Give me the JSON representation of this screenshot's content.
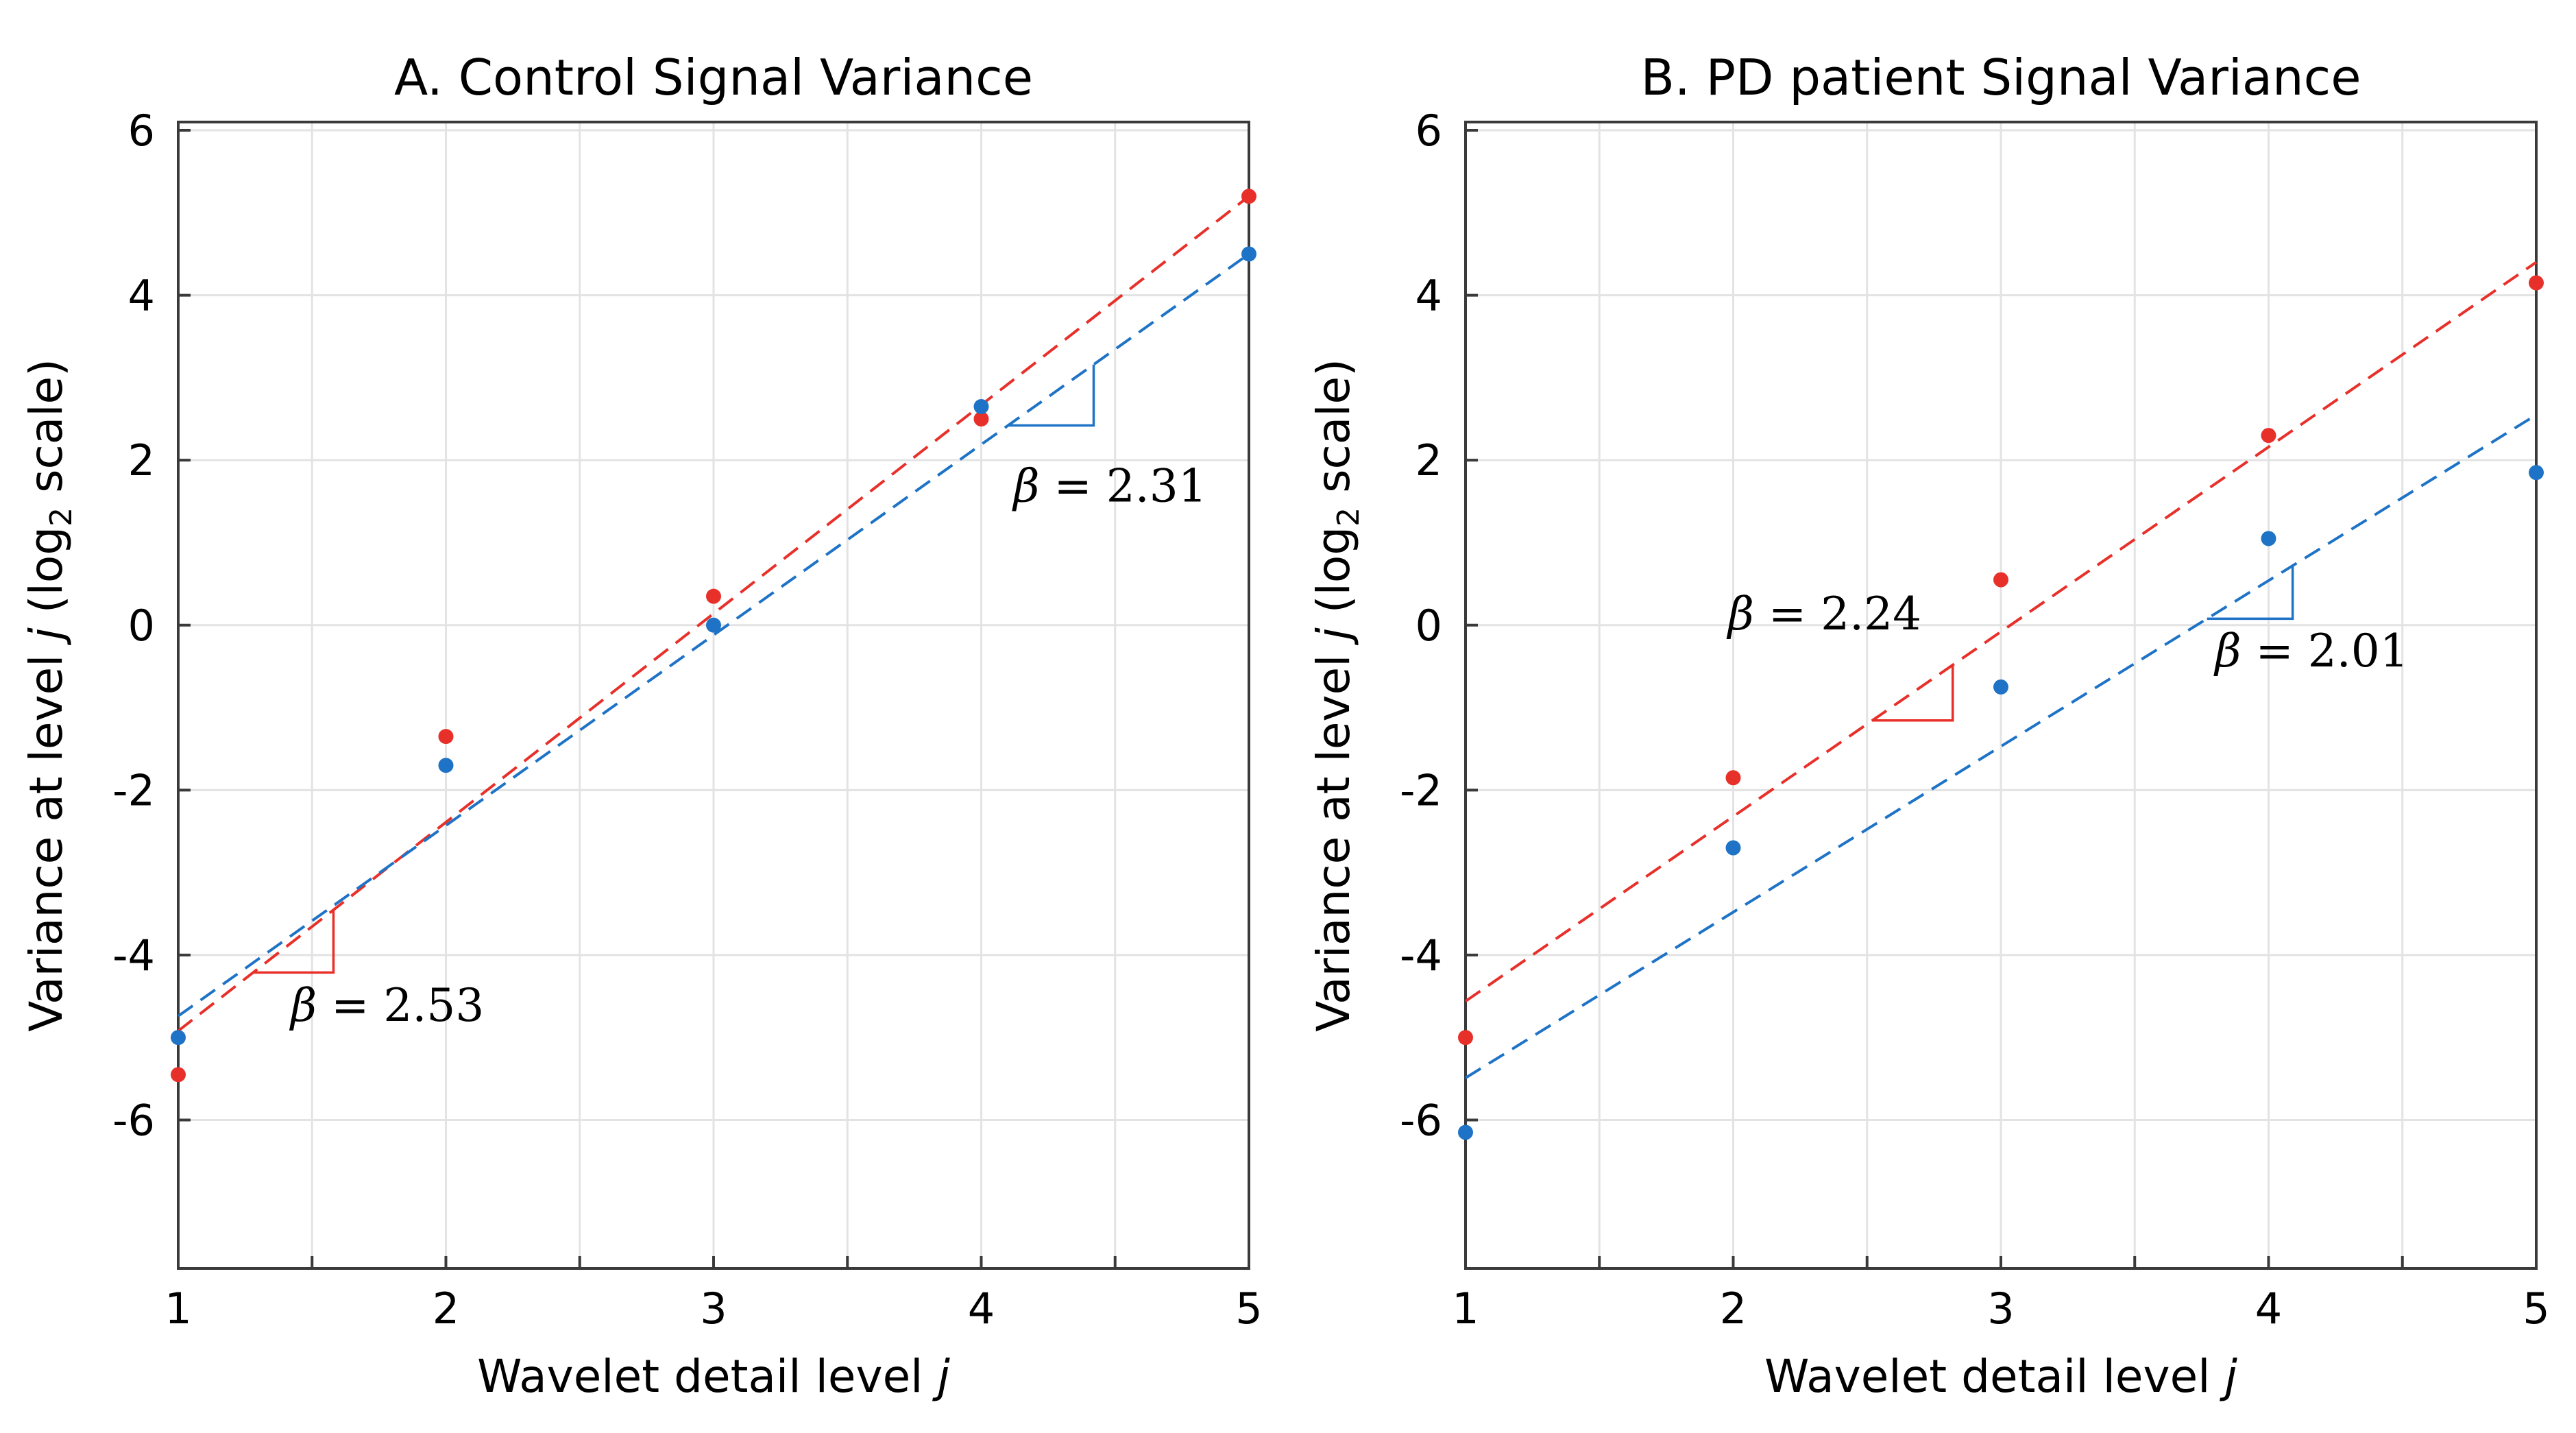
{
  "colors": {
    "control": "#e8302a",
    "patient": "#1e73c6",
    "grid": "#e3e3e3",
    "axis": "#3a3a3a"
  },
  "chart_data": [
    {
      "type": "scatter",
      "title": "A. Control Signal Variance",
      "xlabel": "Wavelet detail level j",
      "ylabel": "Variance at level j (log2 scale)",
      "xlim": [
        1,
        5
      ],
      "ylim": [
        -7.8,
        6.1
      ],
      "xticks": [
        1,
        2,
        3,
        4,
        5
      ],
      "yticks": [
        6,
        4,
        2,
        0,
        -2,
        -4,
        -6
      ],
      "grid": true,
      "series": [
        {
          "name": "red",
          "color": "#e8302a",
          "x": [
            1,
            2,
            3,
            4,
            5
          ],
          "y": [
            -5.45,
            -1.35,
            0.35,
            2.5,
            5.2
          ],
          "fit": {
            "slope": 2.53,
            "intercept": -7.45,
            "x_from": 1,
            "x_to": 5
          }
        },
        {
          "name": "blue",
          "color": "#1e73c6",
          "x": [
            1,
            2,
            3,
            4,
            5
          ],
          "y": [
            -5.0,
            -1.7,
            0.0,
            2.65,
            4.5
          ],
          "fit": {
            "slope": 2.31,
            "intercept": -7.05,
            "x_from": 1,
            "x_to": 5
          }
        }
      ],
      "annotations": [
        {
          "label": "β = 2.53",
          "series": 0,
          "tri_x": [
            1.28,
            1.58
          ],
          "text_at": [
            1.42,
            -4.8
          ]
        },
        {
          "label": "β = 2.31",
          "series": 1,
          "tri_x": [
            4.1,
            4.42
          ],
          "text_at": [
            4.12,
            1.5
          ]
        }
      ]
    },
    {
      "type": "scatter",
      "title": "B. PD patient Signal Variance",
      "xlabel": "Wavelet detail level j",
      "ylabel": "Variance at level j (log2 scale)",
      "xlim": [
        1,
        5
      ],
      "ylim": [
        -7.8,
        6.1
      ],
      "xticks": [
        1,
        2,
        3,
        4,
        5
      ],
      "yticks": [
        6,
        4,
        2,
        0,
        -2,
        -4,
        -6
      ],
      "grid": true,
      "series": [
        {
          "name": "red",
          "color": "#e8302a",
          "x": [
            1,
            2,
            3,
            4,
            5
          ],
          "y": [
            -5.0,
            -1.85,
            0.55,
            2.3,
            4.15
          ],
          "fit": {
            "slope": 2.24,
            "intercept": -6.8,
            "x_from": 1,
            "x_to": 5
          }
        },
        {
          "name": "blue",
          "color": "#1e73c6",
          "x": [
            1,
            2,
            3,
            4,
            5
          ],
          "y": [
            -6.15,
            -2.7,
            -0.75,
            1.05,
            1.85
          ],
          "fit": {
            "slope": 2.01,
            "intercept": -7.5,
            "x_from": 1,
            "x_to": 5
          }
        }
      ],
      "annotations": [
        {
          "label": "β = 2.24",
          "series": 0,
          "tri_x": [
            2.52,
            2.82
          ],
          "text_at": [
            1.98,
            -0.05
          ]
        },
        {
          "label": "β = 2.01",
          "series": 1,
          "tri_x": [
            3.77,
            4.09
          ],
          "text_at": [
            3.8,
            -0.5
          ]
        }
      ]
    }
  ]
}
